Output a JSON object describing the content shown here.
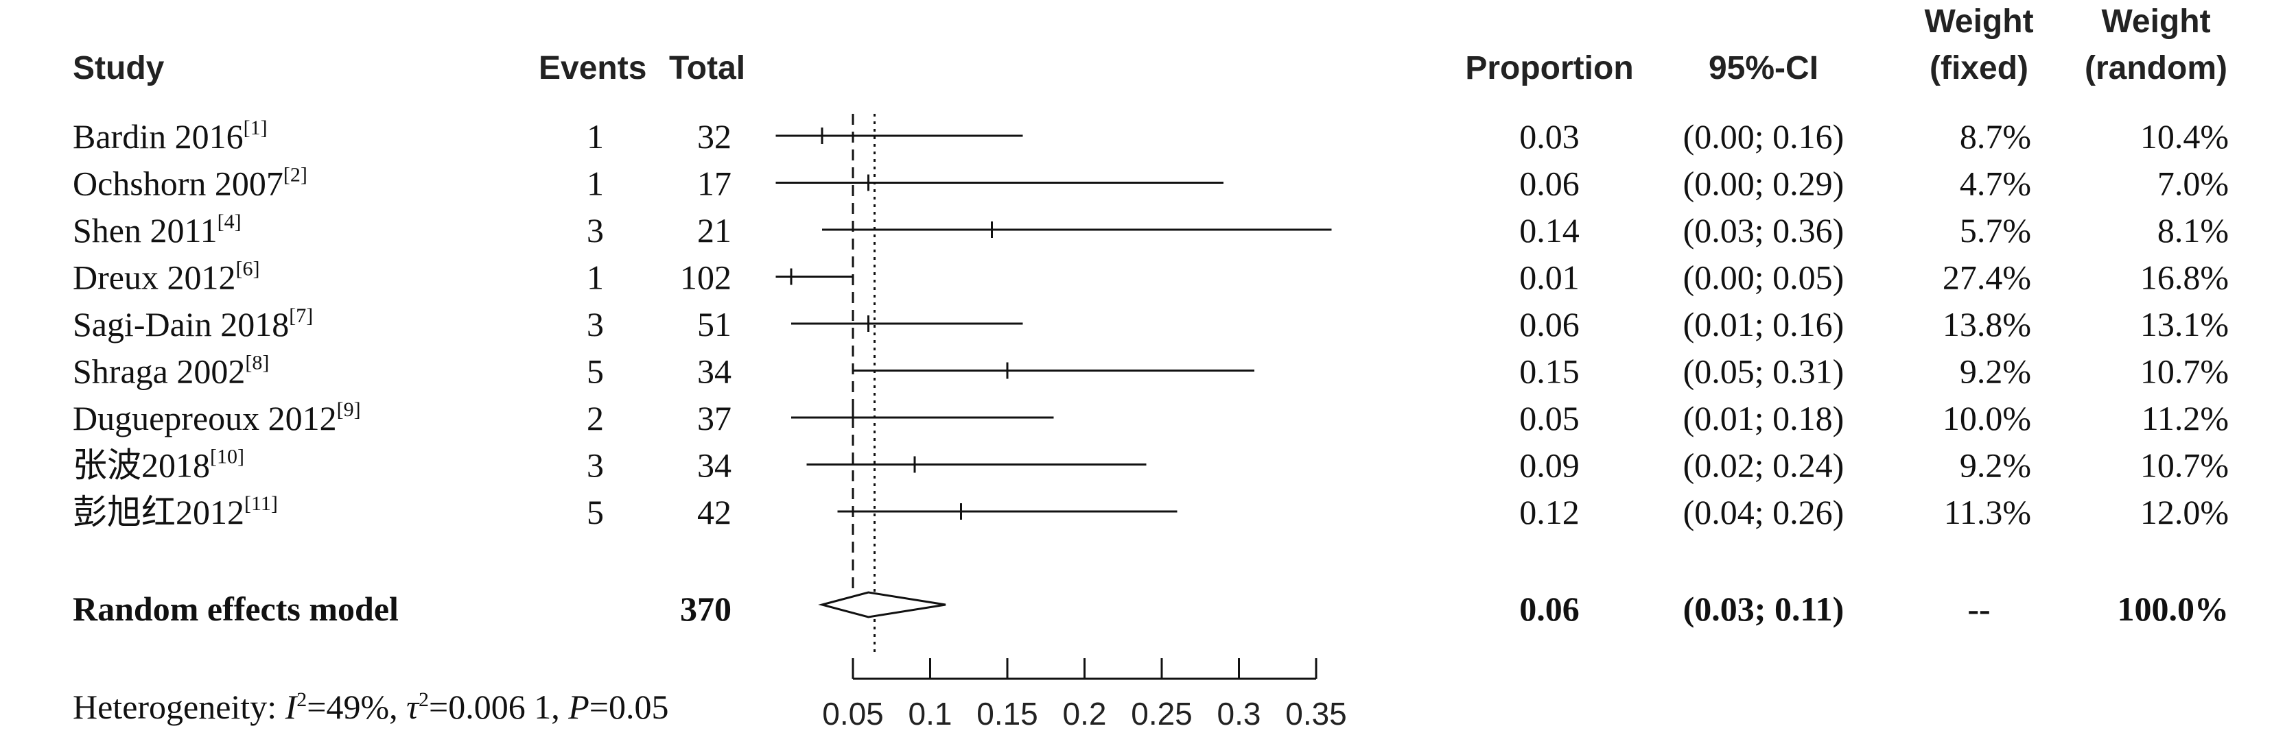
{
  "headers": {
    "study": "Study",
    "events": "Events",
    "total": "Total",
    "proportion": "Proportion",
    "ci": "95%-CI",
    "weight_fixed_1": "Weight",
    "weight_fixed_2": "(fixed)",
    "weight_random_1": "Weight",
    "weight_random_2": "(random)"
  },
  "chart_data": {
    "type": "forest",
    "xlim": [
      0.05,
      0.35
    ],
    "xticks": [
      0.05,
      0.1,
      0.15,
      0.2,
      0.25,
      0.3,
      0.35
    ],
    "xtick_labels": [
      "0.05",
      "0.1",
      "0.15",
      "0.2",
      "0.25",
      "0.3",
      "0.35"
    ],
    "reference_lines": {
      "dashed": 0.05,
      "dotted": 0.064
    },
    "studies": [
      {
        "name": "Bardin 2016",
        "ref": "[1]",
        "events": "1",
        "total": "32",
        "proportion": 0.03,
        "lower": 0.0,
        "upper": 0.16,
        "prop_text": "0.03",
        "ci_text": "(0.00; 0.16)",
        "w_fixed": "8.7%",
        "w_random": "10.4%"
      },
      {
        "name": "Ochshorn 2007",
        "ref": "[2]",
        "events": "1",
        "total": "17",
        "proportion": 0.06,
        "lower": 0.0,
        "upper": 0.29,
        "prop_text": "0.06",
        "ci_text": "(0.00; 0.29)",
        "w_fixed": "4.7%",
        "w_random": "7.0%"
      },
      {
        "name": "Shen 2011",
        "ref": "[4]",
        "events": "3",
        "total": "21",
        "proportion": 0.14,
        "lower": 0.03,
        "upper": 0.36,
        "prop_text": "0.14",
        "ci_text": "(0.03; 0.36)",
        "w_fixed": "5.7%",
        "w_random": "8.1%"
      },
      {
        "name": "Dreux 2012",
        "ref": "[6]",
        "events": "1",
        "total": "102",
        "proportion": 0.01,
        "lower": 0.0,
        "upper": 0.05,
        "prop_text": "0.01",
        "ci_text": "(0.00; 0.05)",
        "w_fixed": "27.4%",
        "w_random": "16.8%"
      },
      {
        "name": "Sagi-Dain 2018",
        "ref": "[7]",
        "events": "3",
        "total": "51",
        "proportion": 0.06,
        "lower": 0.01,
        "upper": 0.16,
        "prop_text": "0.06",
        "ci_text": "(0.01; 0.16)",
        "w_fixed": "13.8%",
        "w_random": "13.1%"
      },
      {
        "name": "Shraga 2002",
        "ref": "[8]",
        "events": "5",
        "total": "34",
        "proportion": 0.15,
        "lower": 0.05,
        "upper": 0.31,
        "prop_text": "0.15",
        "ci_text": "(0.05; 0.31)",
        "w_fixed": "9.2%",
        "w_random": "10.7%"
      },
      {
        "name": "Duguepreoux 2012",
        "ref": "[9]",
        "events": "2",
        "total": "37",
        "proportion": 0.05,
        "lower": 0.01,
        "upper": 0.18,
        "prop_text": "0.05",
        "ci_text": "(0.01; 0.18)",
        "w_fixed": "10.0%",
        "w_random": "11.2%"
      },
      {
        "name": "张波2018",
        "ref": "[10]",
        "events": "3",
        "total": "34",
        "proportion": 0.09,
        "lower": 0.02,
        "upper": 0.24,
        "prop_text": "0.09",
        "ci_text": "(0.02; 0.24)",
        "w_fixed": "9.2%",
        "w_random": "10.7%"
      },
      {
        "name": "彭旭红2012",
        "ref": "[11]",
        "events": "5",
        "total": "42",
        "proportion": 0.12,
        "lower": 0.04,
        "upper": 0.26,
        "prop_text": "0.12",
        "ci_text": "(0.04; 0.26)",
        "w_fixed": "11.3%",
        "w_random": "12.0%"
      }
    ],
    "summary": {
      "label": "Random effects model",
      "total": "370",
      "proportion": 0.06,
      "lower": 0.03,
      "upper": 0.11,
      "prop_text": "0.06",
      "ci_text": "(0.03; 0.11)",
      "w_fixed": "--",
      "w_random": "100.0%"
    },
    "heterogeneity": {
      "prefix": "Heterogeneity: ",
      "I": "I",
      "I2_value": "=49%, ",
      "tau": "τ",
      "tau2_value": "=0.006 1, ",
      "P": "P",
      "P_value": "=0.05"
    }
  }
}
